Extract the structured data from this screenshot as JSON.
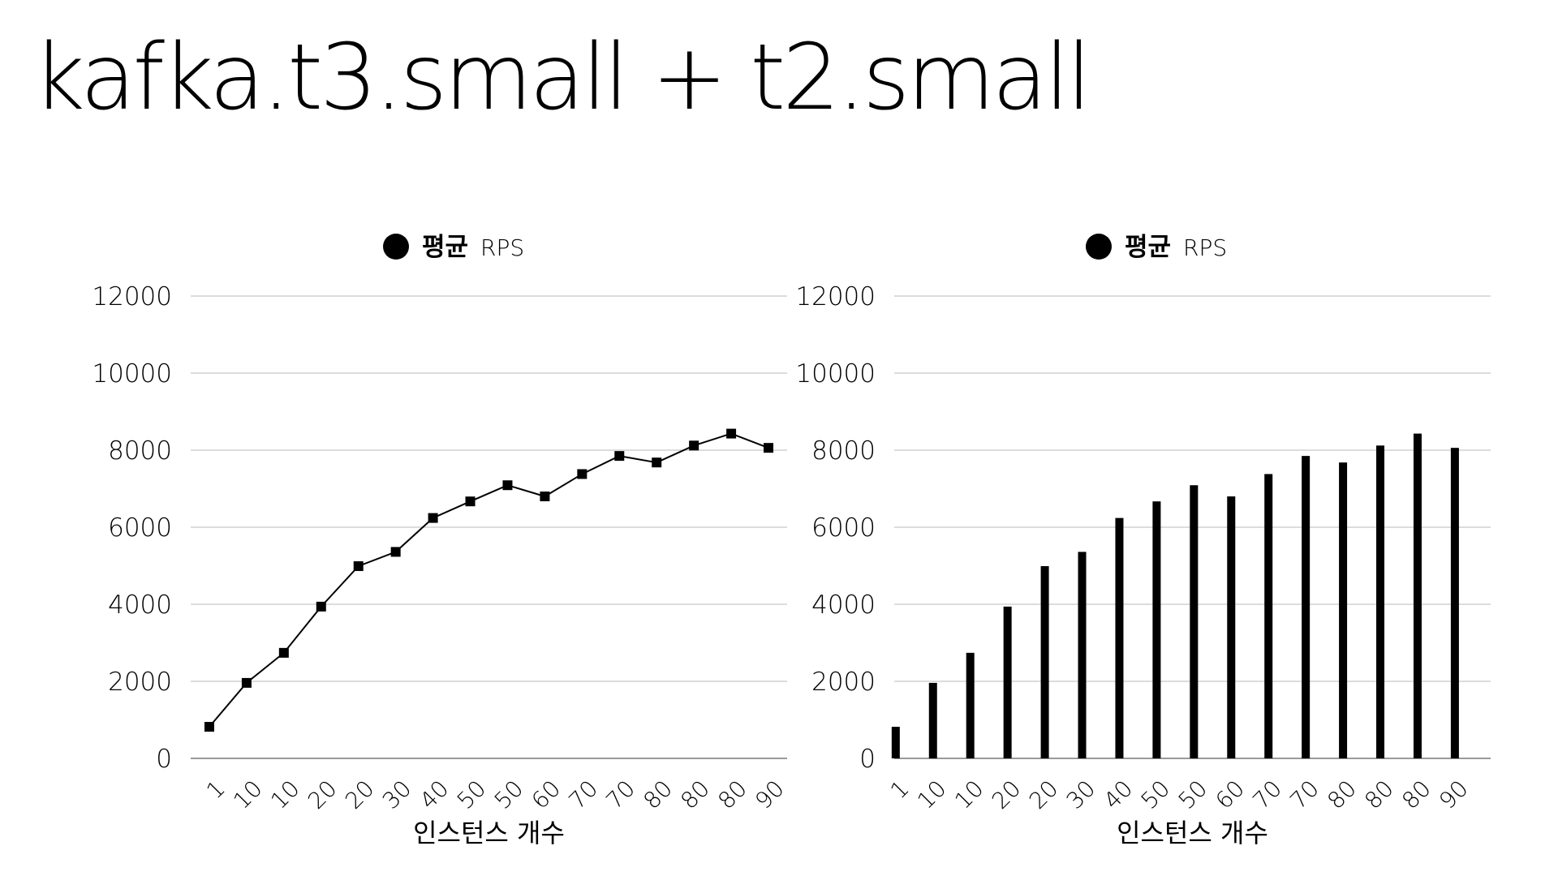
{
  "page": {
    "title": "kafka.t3.small + t2.small"
  },
  "colors": {
    "series": "#000000",
    "grid": "#d0d0d0",
    "axis": "#9a9a9a",
    "background": "#ffffff"
  },
  "chart_data": [
    {
      "type": "line",
      "marker": "square",
      "categories": [
        "1",
        "10",
        "10",
        "20",
        "20",
        "30",
        "40",
        "50",
        "50",
        "60",
        "70",
        "70",
        "80",
        "80",
        "80",
        "90"
      ],
      "series": [
        {
          "name": "평균 RPS",
          "name_parts": [
            "평균",
            "RPS"
          ],
          "values": [
            820,
            1960,
            2740,
            3940,
            4990,
            5360,
            6240,
            6670,
            7090,
            6800,
            7380,
            7850,
            7680,
            8120,
            8430,
            8060
          ]
        }
      ],
      "xlabel": "인스턴스 개수",
      "ylabel": "",
      "ylim": [
        0,
        12000
      ],
      "yticks": [
        "0",
        "2000",
        "4000",
        "6000",
        "8000",
        "10000",
        "12000"
      ],
      "grid": true,
      "legend": "top-center"
    },
    {
      "type": "bar",
      "categories": [
        "1",
        "10",
        "10",
        "20",
        "20",
        "30",
        "40",
        "50",
        "50",
        "60",
        "70",
        "70",
        "80",
        "80",
        "80",
        "90"
      ],
      "series": [
        {
          "name": "평균 RPS",
          "name_parts": [
            "평균",
            "RPS"
          ],
          "values": [
            820,
            1960,
            2740,
            3940,
            4990,
            5360,
            6240,
            6670,
            7090,
            6800,
            7380,
            7850,
            7680,
            8120,
            8430,
            8060
          ]
        }
      ],
      "xlabel": "인스턴스 개수",
      "ylabel": "",
      "ylim": [
        0,
        12000
      ],
      "yticks": [
        "0",
        "2000",
        "4000",
        "6000",
        "8000",
        "10000",
        "12000"
      ],
      "grid": true,
      "legend": "top-center"
    }
  ]
}
